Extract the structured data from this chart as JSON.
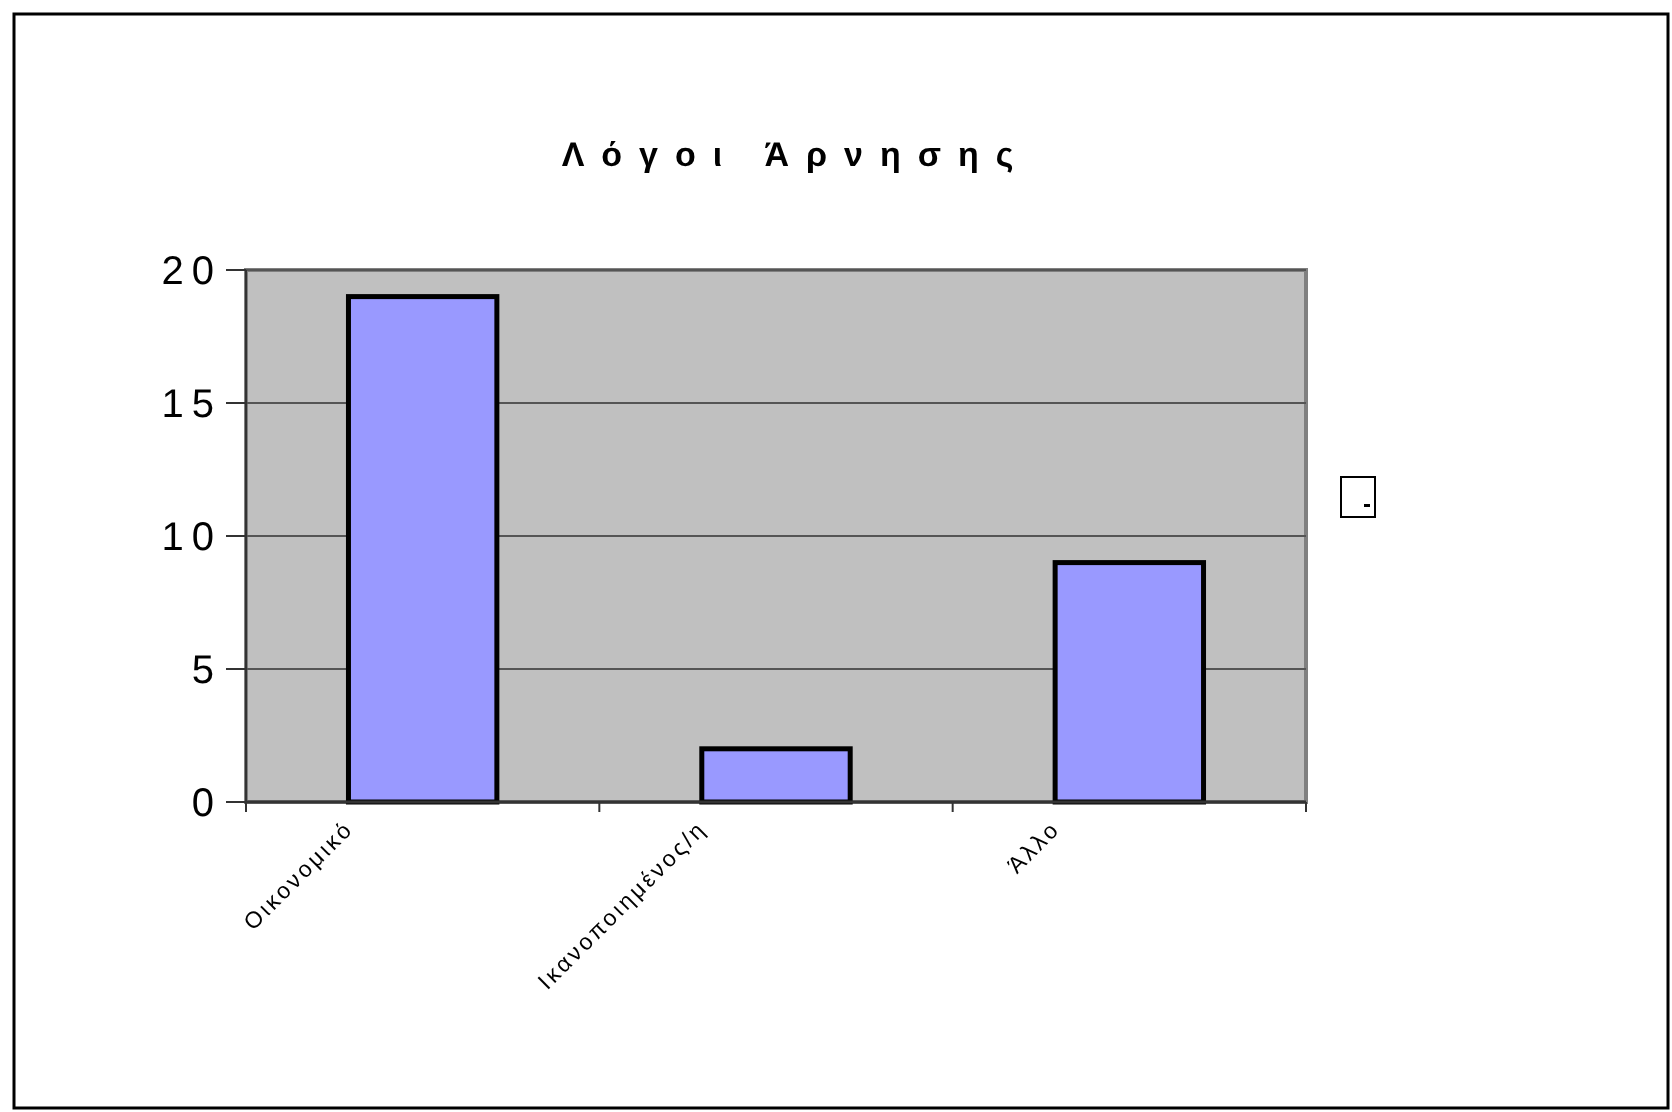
{
  "chart_data": {
    "type": "bar",
    "title": "Λόγοι Άρνησης",
    "categories": [
      "Οικονομικό",
      "Ικανοποιημένος/η",
      "Άλλο"
    ],
    "values": [
      19,
      2,
      9
    ],
    "color": "#9999ff",
    "ylim": [
      0,
      20
    ],
    "yticks": [
      0,
      5,
      10,
      15,
      20
    ],
    "grid": "y"
  }
}
